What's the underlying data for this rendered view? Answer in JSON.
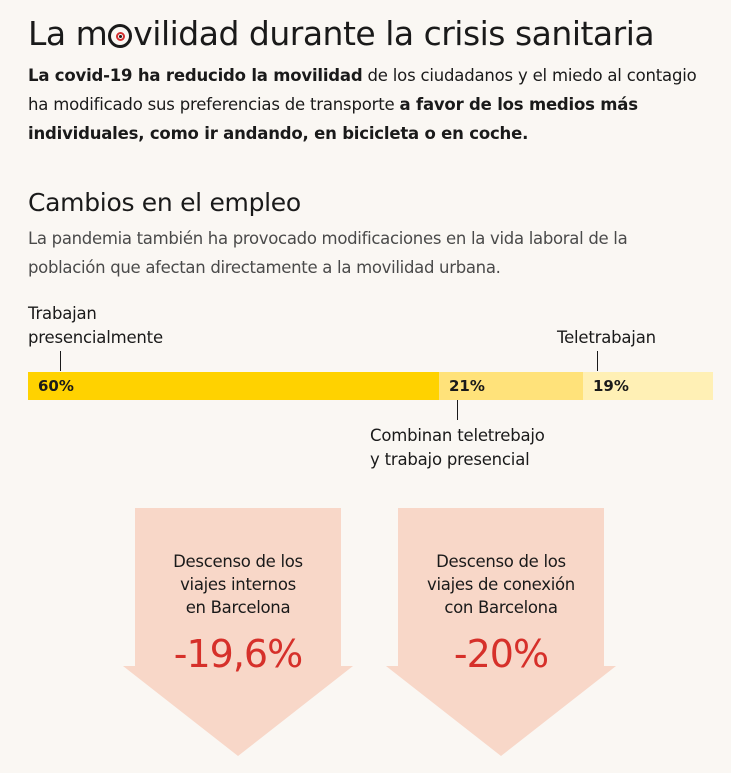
{
  "header": {
    "title_before": "La m",
    "title_after": "vilidad durante la crisis sanitaria",
    "intro": [
      {
        "text": "La covid-19 ha reducido la movilidad",
        "bold": true
      },
      {
        "text": " de los ciudadanos y el miedo al contagio ha modificado sus preferencias de transporte ",
        "bold": false
      },
      {
        "text": "a favor de los medios más individuales, como ir andando, en bicicleta o en coche.",
        "bold": true
      }
    ]
  },
  "section": {
    "title": "Cambios en el empleo",
    "subtitle": "La pandemia también ha provocado modificaciones en la vida laboral de la población que afectan directamente a la movilidad urbana."
  },
  "chart_data": {
    "type": "bar",
    "stacked": true,
    "unit": "%",
    "categories": [
      "Trabajan presencialmente",
      "Combinan teletrebajo y trabajo presencial",
      "Teletrabajan"
    ],
    "values": [
      60,
      21,
      19
    ],
    "value_labels": [
      "60%",
      "21%",
      "19%"
    ],
    "colors": [
      "#ffd200",
      "#ffe27a",
      "#fff0b5"
    ],
    "annotations": [
      {
        "line1": "Trabajan",
        "line2": "presencialmente"
      },
      {
        "line1": "Combinan teletrebajo",
        "line2": "y trabajo presencial"
      },
      {
        "line1": "Teletrabajan",
        "line2": ""
      }
    ]
  },
  "callouts": [
    {
      "lines": [
        "Descenso de los",
        "viajes internos",
        "en Barcelona"
      ],
      "value": "-19,6%"
    },
    {
      "lines": [
        "Descenso de los",
        "viajes de conexión",
        "con Barcelona"
      ],
      "value": "-20%"
    }
  ],
  "colors": {
    "accent_red": "#d6302a",
    "arrow_fill": "#f8d7c8",
    "background": "#faf7f3"
  }
}
